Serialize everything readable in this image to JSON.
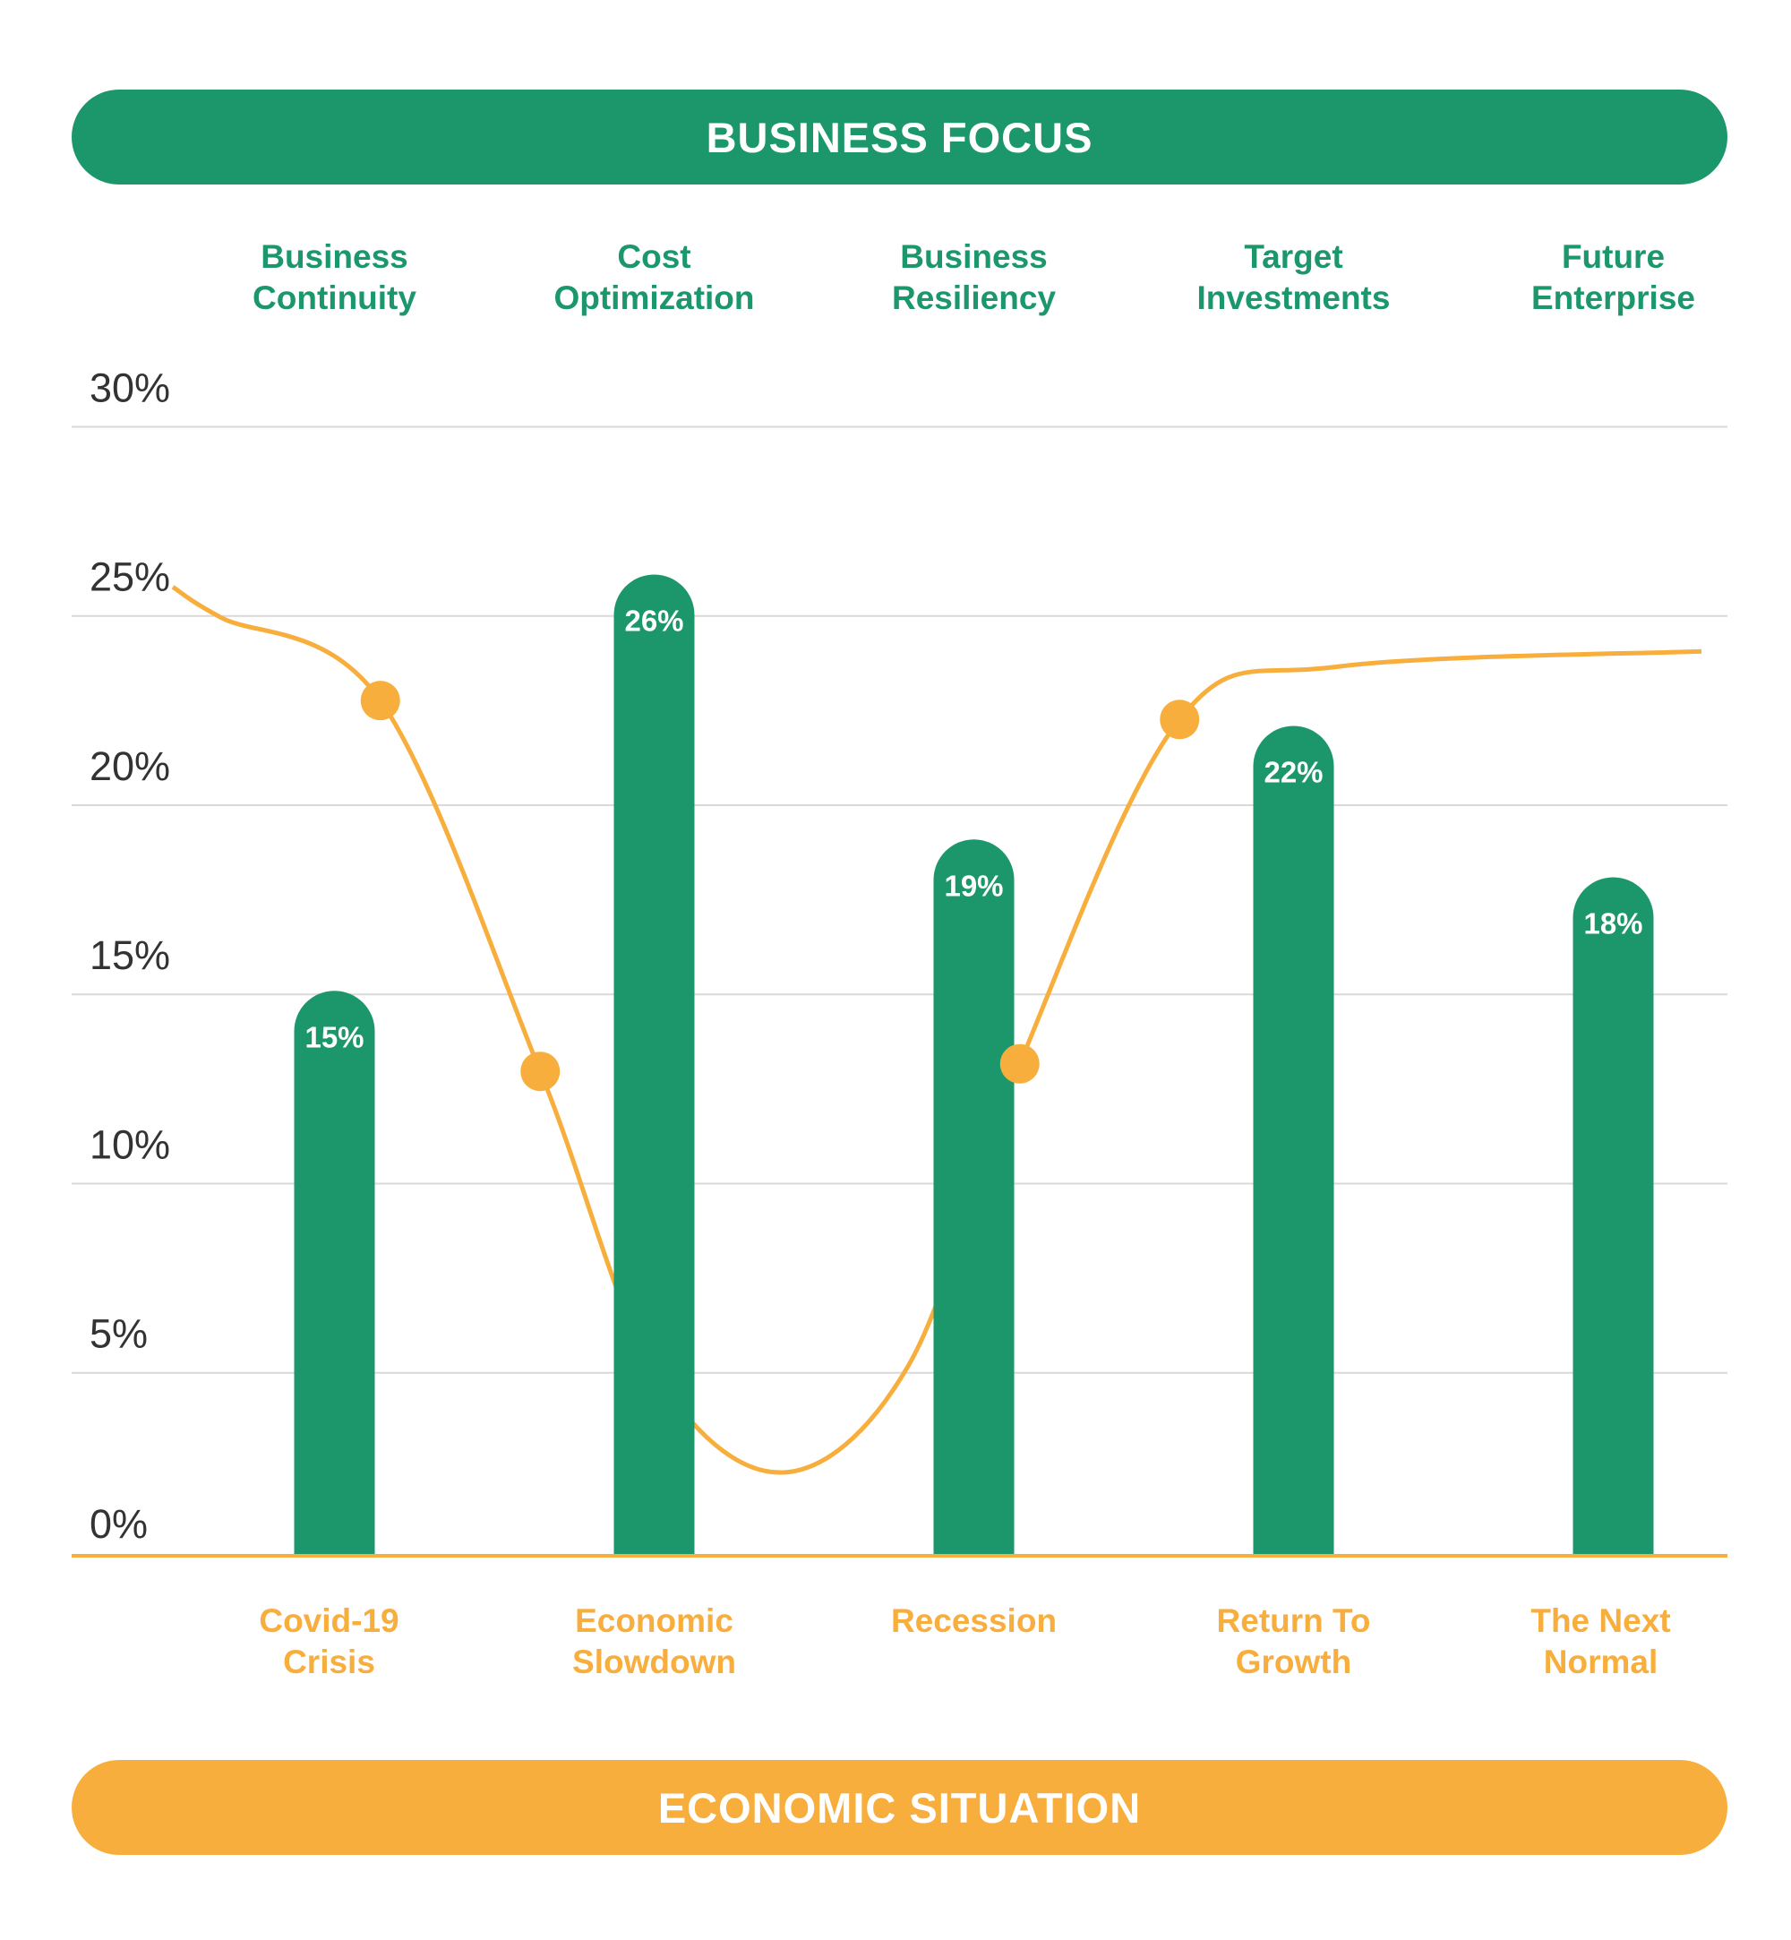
{
  "colors": {
    "green": "#1c976c",
    "orange": "#f8ae3c",
    "grid": "#d9d9d9",
    "tick_text": "#333333",
    "white": "#ffffff"
  },
  "header": {
    "title": "BUSINESS FOCUS"
  },
  "footer": {
    "title": "ECONOMIC SITUATION"
  },
  "chart_data": {
    "type": "bar",
    "ylim": [
      0,
      30
    ],
    "yticks": [
      "30%",
      "25%",
      "20%",
      "15%",
      "10%",
      "5%",
      "0%"
    ],
    "yticks_values": [
      30,
      25,
      20,
      15,
      10,
      5,
      0
    ],
    "grid": true,
    "top_categories": [
      [
        "Business",
        "Continuity"
      ],
      [
        "Cost",
        "Optimization"
      ],
      [
        "Business",
        "Resiliency"
      ],
      [
        "Target",
        "Investments"
      ],
      [
        "Future",
        "Enterprise"
      ]
    ],
    "bottom_categories": [
      [
        "Covid-19",
        "Crisis"
      ],
      [
        "Economic",
        "Slowdown"
      ],
      [
        "Recession"
      ],
      [
        "Return To",
        "Growth"
      ],
      [
        "The Next",
        "Normal"
      ]
    ],
    "values": [
      15,
      26,
      19,
      22,
      18
    ],
    "value_labels": [
      "15%",
      "26%",
      "19%",
      "22%",
      "18%"
    ],
    "curve": {
      "x": [
        0.25,
        0.75,
        1.25,
        1.6,
        2,
        2.4,
        2.75,
        3.25,
        3.75
      ],
      "y": [
        24.8,
        22.6,
        12.8,
        5,
        2.2,
        5,
        13,
        22.1,
        23.5
      ]
    }
  }
}
